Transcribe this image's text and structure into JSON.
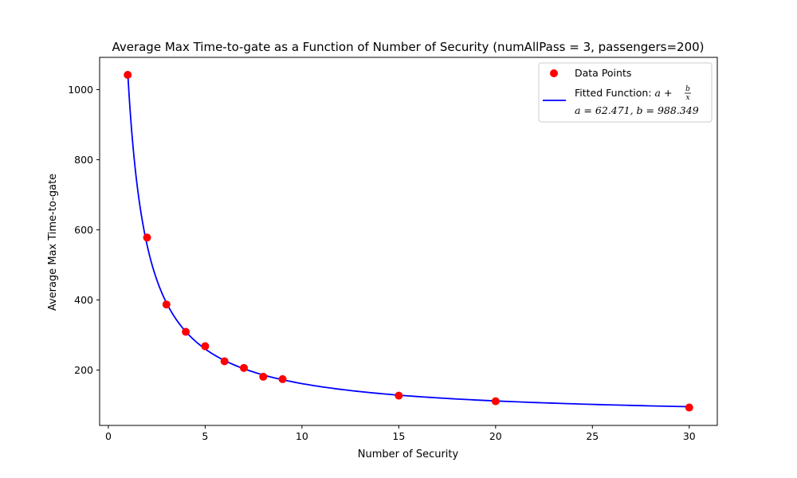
{
  "chart_data": {
    "type": "scatter",
    "title": "Average Max Time-to-gate as a Function of Number of Security (numAllPass = 3, passengers=200)",
    "xlabel": "Number of Security",
    "ylabel": "Average Max Time-to-gate",
    "xlim": [
      -0.45,
      31.45
    ],
    "ylim": [
      42,
      1092
    ],
    "xticks": [
      0,
      5,
      10,
      15,
      20,
      25,
      30
    ],
    "yticks": [
      200,
      400,
      600,
      800,
      1000
    ],
    "grid": false,
    "legend_position": "top-right",
    "series": [
      {
        "name": "Data Points",
        "kind": "scatter",
        "color": "#ff0000",
        "x": [
          1,
          2,
          3,
          4,
          5,
          6,
          7,
          8,
          9,
          15,
          20,
          30
        ],
        "y": [
          1042,
          578,
          387,
          309,
          268,
          225,
          206,
          181,
          174,
          127,
          111,
          93
        ]
      },
      {
        "name": "Fitted Function",
        "kind": "line",
        "color": "#0000ff",
        "formula": "a + b/x",
        "x_range": [
          1,
          30
        ],
        "params": {
          "a": 62.471,
          "b": 988.349
        }
      }
    ],
    "legend": {
      "scatter_label": "Data Points",
      "fit_label_prefix": "Fitted Function: ",
      "fit_formula_a": "a",
      "fit_formula_plus": " + ",
      "fit_formula_num": "b",
      "fit_formula_den": "x",
      "fit_params_label": "a = 62.471, b = 988.349"
    }
  }
}
